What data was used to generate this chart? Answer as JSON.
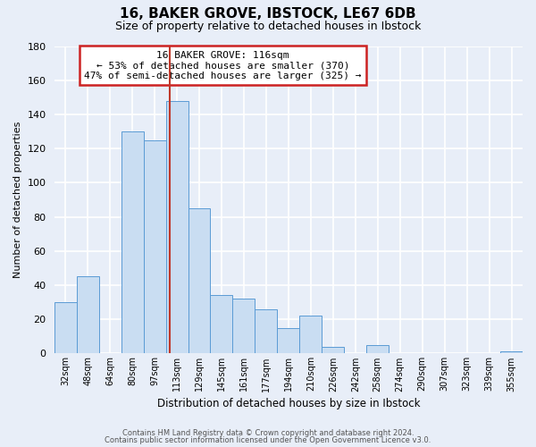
{
  "title": "16, BAKER GROVE, IBSTOCK, LE67 6DB",
  "subtitle": "Size of property relative to detached houses in Ibstock",
  "xlabel": "Distribution of detached houses by size in Ibstock",
  "ylabel": "Number of detached properties",
  "bar_labels": [
    "32sqm",
    "48sqm",
    "64sqm",
    "80sqm",
    "97sqm",
    "113sqm",
    "129sqm",
    "145sqm",
    "161sqm",
    "177sqm",
    "194sqm",
    "210sqm",
    "226sqm",
    "242sqm",
    "258sqm",
    "274sqm",
    "290sqm",
    "307sqm",
    "323sqm",
    "339sqm",
    "355sqm"
  ],
  "bar_values": [
    30,
    45,
    0,
    130,
    125,
    148,
    85,
    34,
    32,
    26,
    15,
    22,
    4,
    0,
    5,
    0,
    0,
    0,
    0,
    0,
    1
  ],
  "bar_color": "#c9ddf2",
  "bar_edge_color": "#5b9bd5",
  "ylim": [
    0,
    180
  ],
  "yticks": [
    0,
    20,
    40,
    60,
    80,
    100,
    120,
    140,
    160,
    180
  ],
  "vline_color": "#c0392b",
  "annotation_title": "16 BAKER GROVE: 116sqm",
  "annotation_line1": "← 53% of detached houses are smaller (370)",
  "annotation_line2": "47% of semi-detached houses are larger (325) →",
  "footer_line1": "Contains HM Land Registry data © Crown copyright and database right 2024.",
  "footer_line2": "Contains public sector information licensed under the Open Government Licence v3.0.",
  "background_color": "#e8eef8",
  "plot_bg_color": "#e8eef8"
}
